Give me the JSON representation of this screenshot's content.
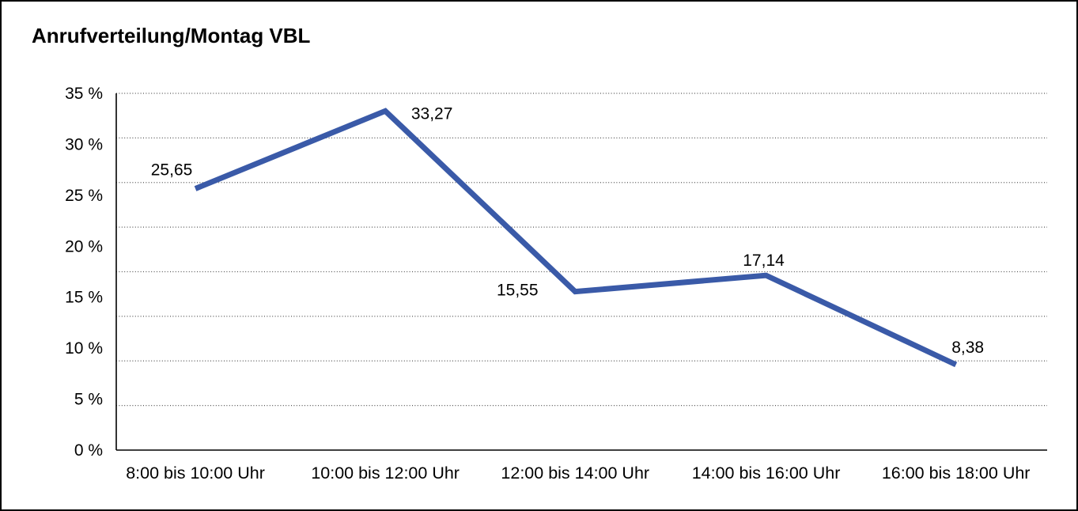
{
  "title": "Anrufverteilung/Montag VBL",
  "colors": {
    "line": "#3A5AA8",
    "grid": "#555555",
    "axis": "#000000",
    "text": "#000000",
    "background": "#ffffff",
    "border": "#000000"
  },
  "chart_data": {
    "type": "line",
    "title": "Anrufverteilung/Montag VBL",
    "categories": [
      "8:00 bis 10:00 Uhr",
      "10:00 bis 12:00 Uhr",
      "12:00 bis 14:00 Uhr",
      "14:00 bis 16:00 Uhr",
      "16:00 bis 18:00 Uhr"
    ],
    "values": [
      25.65,
      33.27,
      15.55,
      17.14,
      8.38
    ],
    "point_labels": [
      "25,65",
      "33,27",
      "15,55",
      "17,14",
      "8,38"
    ],
    "y_tick_labels": [
      "35 %",
      "30 %",
      "25 %",
      "20 %",
      "15 %",
      "10 %",
      "5 %",
      "0 %"
    ],
    "y_tick_values": [
      35,
      30,
      25,
      20,
      15,
      10,
      5,
      0
    ],
    "ylim": [
      0,
      35
    ],
    "xlabel": "",
    "ylabel": "",
    "grid": "horizontal-dotted",
    "legend": "none"
  }
}
